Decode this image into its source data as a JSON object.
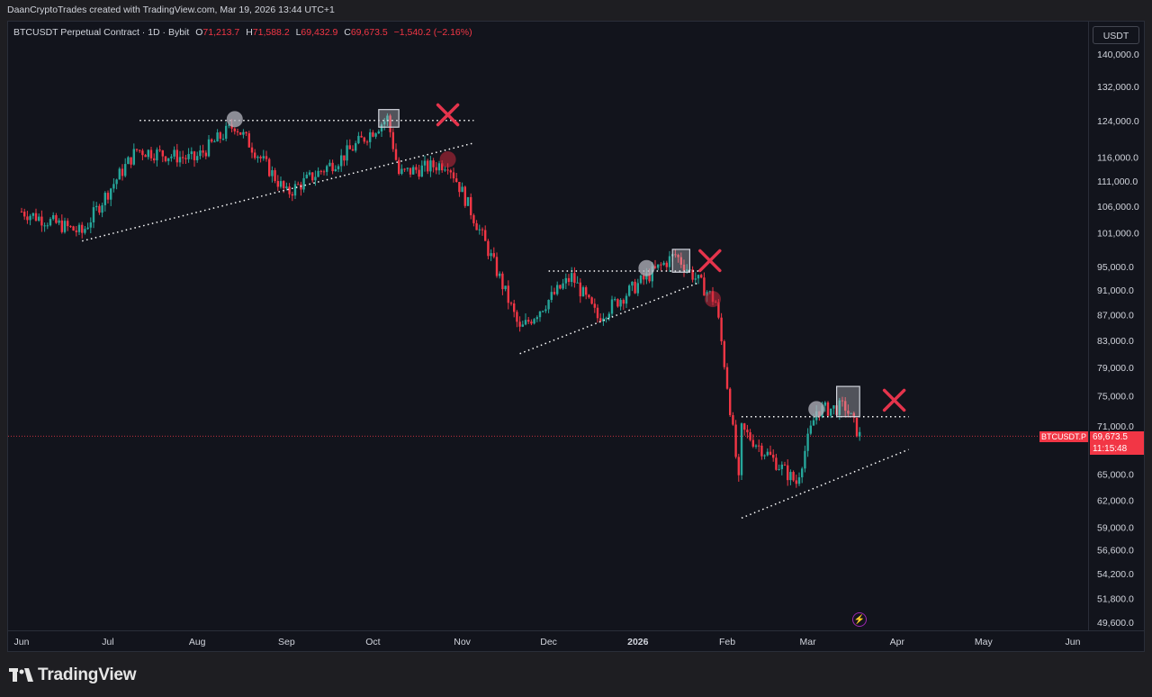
{
  "credit": "DaanCryptoTrades created with TradingView.com, Mar 19, 2026 13:44 UTC+1",
  "legend": {
    "symbol": "BTCUSDT Perpetual Contract · 1D · Bybit",
    "open_label": "O",
    "open": "71,213.7",
    "high_label": "H",
    "high": "71,588.2",
    "low_label": "L",
    "low": "69,432.9",
    "close_label": "C",
    "close": "69,673.5",
    "change": "−1,540.2 (−2.16%)"
  },
  "currency_button": "USDT",
  "price_axis": [
    "140,000.0",
    "132,000.0",
    "124,000.0",
    "116,000.0",
    "111,000.0",
    "106,000.0",
    "101,000.0",
    "95,000.0",
    "91,000.0",
    "87,000.0",
    "83,000.0",
    "79,000.0",
    "75,000.0",
    "71,000.0",
    "65,000.0",
    "62,000.0",
    "59,000.0",
    "56,600.0",
    "54,200.0",
    "51,800.0",
    "49,600.0"
  ],
  "time_axis": [
    {
      "label": "Jun",
      "bold": false
    },
    {
      "label": "Jul",
      "bold": false
    },
    {
      "label": "Aug",
      "bold": false
    },
    {
      "label": "Sep",
      "bold": false
    },
    {
      "label": "Oct",
      "bold": false
    },
    {
      "label": "Nov",
      "bold": false
    },
    {
      "label": "Dec",
      "bold": false
    },
    {
      "label": "2026",
      "bold": true
    },
    {
      "label": "Feb",
      "bold": false
    },
    {
      "label": "Mar",
      "bold": false
    },
    {
      "label": "Apr",
      "bold": false
    },
    {
      "label": "May",
      "bold": false
    },
    {
      "label": "Jun",
      "bold": false
    }
  ],
  "price_tag": {
    "symbol": "BTCUSDT.P",
    "price": "69,673.5",
    "countdown": "11:15:48"
  },
  "colors": {
    "up": "#26a69a",
    "down": "#f23645",
    "background": "#12141c",
    "annotation_x": "#e5344c",
    "dotted": "#ffffff"
  },
  "chart_data": {
    "type": "candlestick",
    "symbol": "BTCUSDT Perpetual Contract",
    "interval": "1D",
    "exchange": "Bybit",
    "y_axis_scale": "log",
    "y_ticks": [
      140000,
      132000,
      124000,
      116000,
      111000,
      106000,
      101000,
      95000,
      91000,
      87000,
      83000,
      79000,
      75000,
      71000,
      65000,
      62000,
      59000,
      56600,
      54200,
      51800,
      49600
    ],
    "x_ticks": [
      "Jun",
      "Jul",
      "Aug",
      "Sep",
      "Oct",
      "Nov",
      "Dec",
      "2026",
      "Feb",
      "Mar",
      "Apr",
      "May",
      "Jun"
    ],
    "last_price": 69673.5,
    "approx_close_path": [
      {
        "date": "2025-06-01",
        "close": 105000
      },
      {
        "date": "2025-06-22",
        "close": 101000
      },
      {
        "date": "2025-07-11",
        "close": 117500
      },
      {
        "date": "2025-07-31",
        "close": 115500
      },
      {
        "date": "2025-08-14",
        "close": 123000
      },
      {
        "date": "2025-09-01",
        "close": 108500
      },
      {
        "date": "2025-09-20",
        "close": 115800
      },
      {
        "date": "2025-10-06",
        "close": 124500
      },
      {
        "date": "2025-10-10",
        "close": 112500
      },
      {
        "date": "2025-10-27",
        "close": 114800
      },
      {
        "date": "2025-11-21",
        "close": 84500
      },
      {
        "date": "2025-12-09",
        "close": 93200
      },
      {
        "date": "2025-12-18",
        "close": 86500
      },
      {
        "date": "2026-01-14",
        "close": 97000
      },
      {
        "date": "2026-01-28",
        "close": 89000
      },
      {
        "date": "2026-02-05",
        "close": 64000
      },
      {
        "date": "2026-02-06",
        "close": 70500
      },
      {
        "date": "2026-02-25",
        "close": 64000
      },
      {
        "date": "2026-03-04",
        "close": 73000
      },
      {
        "date": "2026-03-14",
        "close": 73500
      },
      {
        "date": "2026-03-19",
        "close": 69673.5
      }
    ],
    "annotations": [
      {
        "type": "horizontal_dotted",
        "price": 124000,
        "from": "2025-07-12",
        "to": "2025-11-05"
      },
      {
        "type": "trend_dotted",
        "from": {
          "date": "2025-06-22",
          "price": 99500
        },
        "to": {
          "date": "2025-11-05",
          "price": 119000
        }
      },
      {
        "type": "horizontal_dotted",
        "price": 94200,
        "from": "2025-12-01",
        "to": "2026-01-22"
      },
      {
        "type": "trend_dotted",
        "from": {
          "date": "2025-11-21",
          "price": 81000
        },
        "to": {
          "date": "2026-01-22",
          "price": 92200
        }
      },
      {
        "type": "horizontal_dotted",
        "price": 72200,
        "from": "2026-02-06",
        "to": "2026-04-05"
      },
      {
        "type": "trend_dotted",
        "from": {
          "date": "2026-02-06",
          "price": 60000
        },
        "to": {
          "date": "2026-04-05",
          "price": 68000
        }
      },
      {
        "type": "cross_marker",
        "count": 3
      }
    ]
  }
}
